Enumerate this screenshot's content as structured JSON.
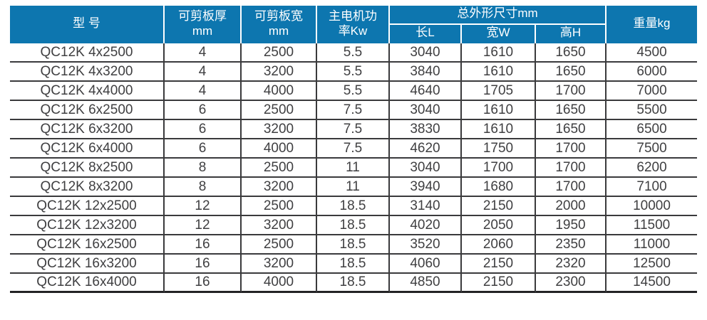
{
  "colors": {
    "header_bg": "#0D76AF",
    "header_text": "#FFFFFF",
    "body_text": "#3F3F41",
    "grid_line": "#3A3A3C"
  },
  "table": {
    "headers": {
      "model": "型 号",
      "thickness": {
        "line1": "可剪板厚",
        "line2": "mm"
      },
      "sheet_width": {
        "line1": "可剪板宽",
        "line2": "mm"
      },
      "motor_power": {
        "line1": "主电机功",
        "line2": "率Kw"
      },
      "dimensions_group": "总外形尺寸mm",
      "dim_length": "长L",
      "dim_width": "宽W",
      "dim_height": "高H",
      "weight": "重量kg"
    },
    "columns": [
      "model",
      "thickness_mm",
      "width_mm",
      "power_kw",
      "length_L",
      "width_W",
      "height_H",
      "weight_kg"
    ],
    "rows": [
      [
        "QC12K 4x2500",
        "4",
        "2500",
        "5.5",
        "3040",
        "1610",
        "1650",
        "4500"
      ],
      [
        "QC12K 4x3200",
        "4",
        "3200",
        "5.5",
        "3840",
        "1610",
        "1650",
        "6000"
      ],
      [
        "QC12K 4x4000",
        "4",
        "4000",
        "5.5",
        "4640",
        "1705",
        "1700",
        "7000"
      ],
      [
        "QC12K 6x2500",
        "6",
        "2500",
        "7.5",
        "3040",
        "1610",
        "1650",
        "5500"
      ],
      [
        "QC12K 6x3200",
        "6",
        "3200",
        "7.5",
        "3830",
        "1610",
        "1650",
        "6500"
      ],
      [
        "QC12K 6x4000",
        "6",
        "4000",
        "7.5",
        "4620",
        "1750",
        "1700",
        "7500"
      ],
      [
        "QC12K 8x2500",
        "8",
        "2500",
        "11",
        "3040",
        "1700",
        "1700",
        "6200"
      ],
      [
        "QC12K 8x3200",
        "8",
        "3200",
        "11",
        "3940",
        "1680",
        "1700",
        "7100"
      ],
      [
        "QC12K 12x2500",
        "12",
        "2500",
        "18.5",
        "3140",
        "2150",
        "2000",
        "10000"
      ],
      [
        "QC12K 12x3200",
        "12",
        "3200",
        "18.5",
        "4020",
        "2050",
        "1950",
        "11500"
      ],
      [
        "QC12K 16x2500",
        "16",
        "2500",
        "18.5",
        "3520",
        "2060",
        "2350",
        "11000"
      ],
      [
        "QC12K 16x3200",
        "16",
        "3200",
        "18.5",
        "4060",
        "2150",
        "2320",
        "12500"
      ],
      [
        "QC12K 16x4000",
        "16",
        "4000",
        "18.5",
        "4850",
        "2150",
        "2300",
        "14500"
      ]
    ]
  }
}
